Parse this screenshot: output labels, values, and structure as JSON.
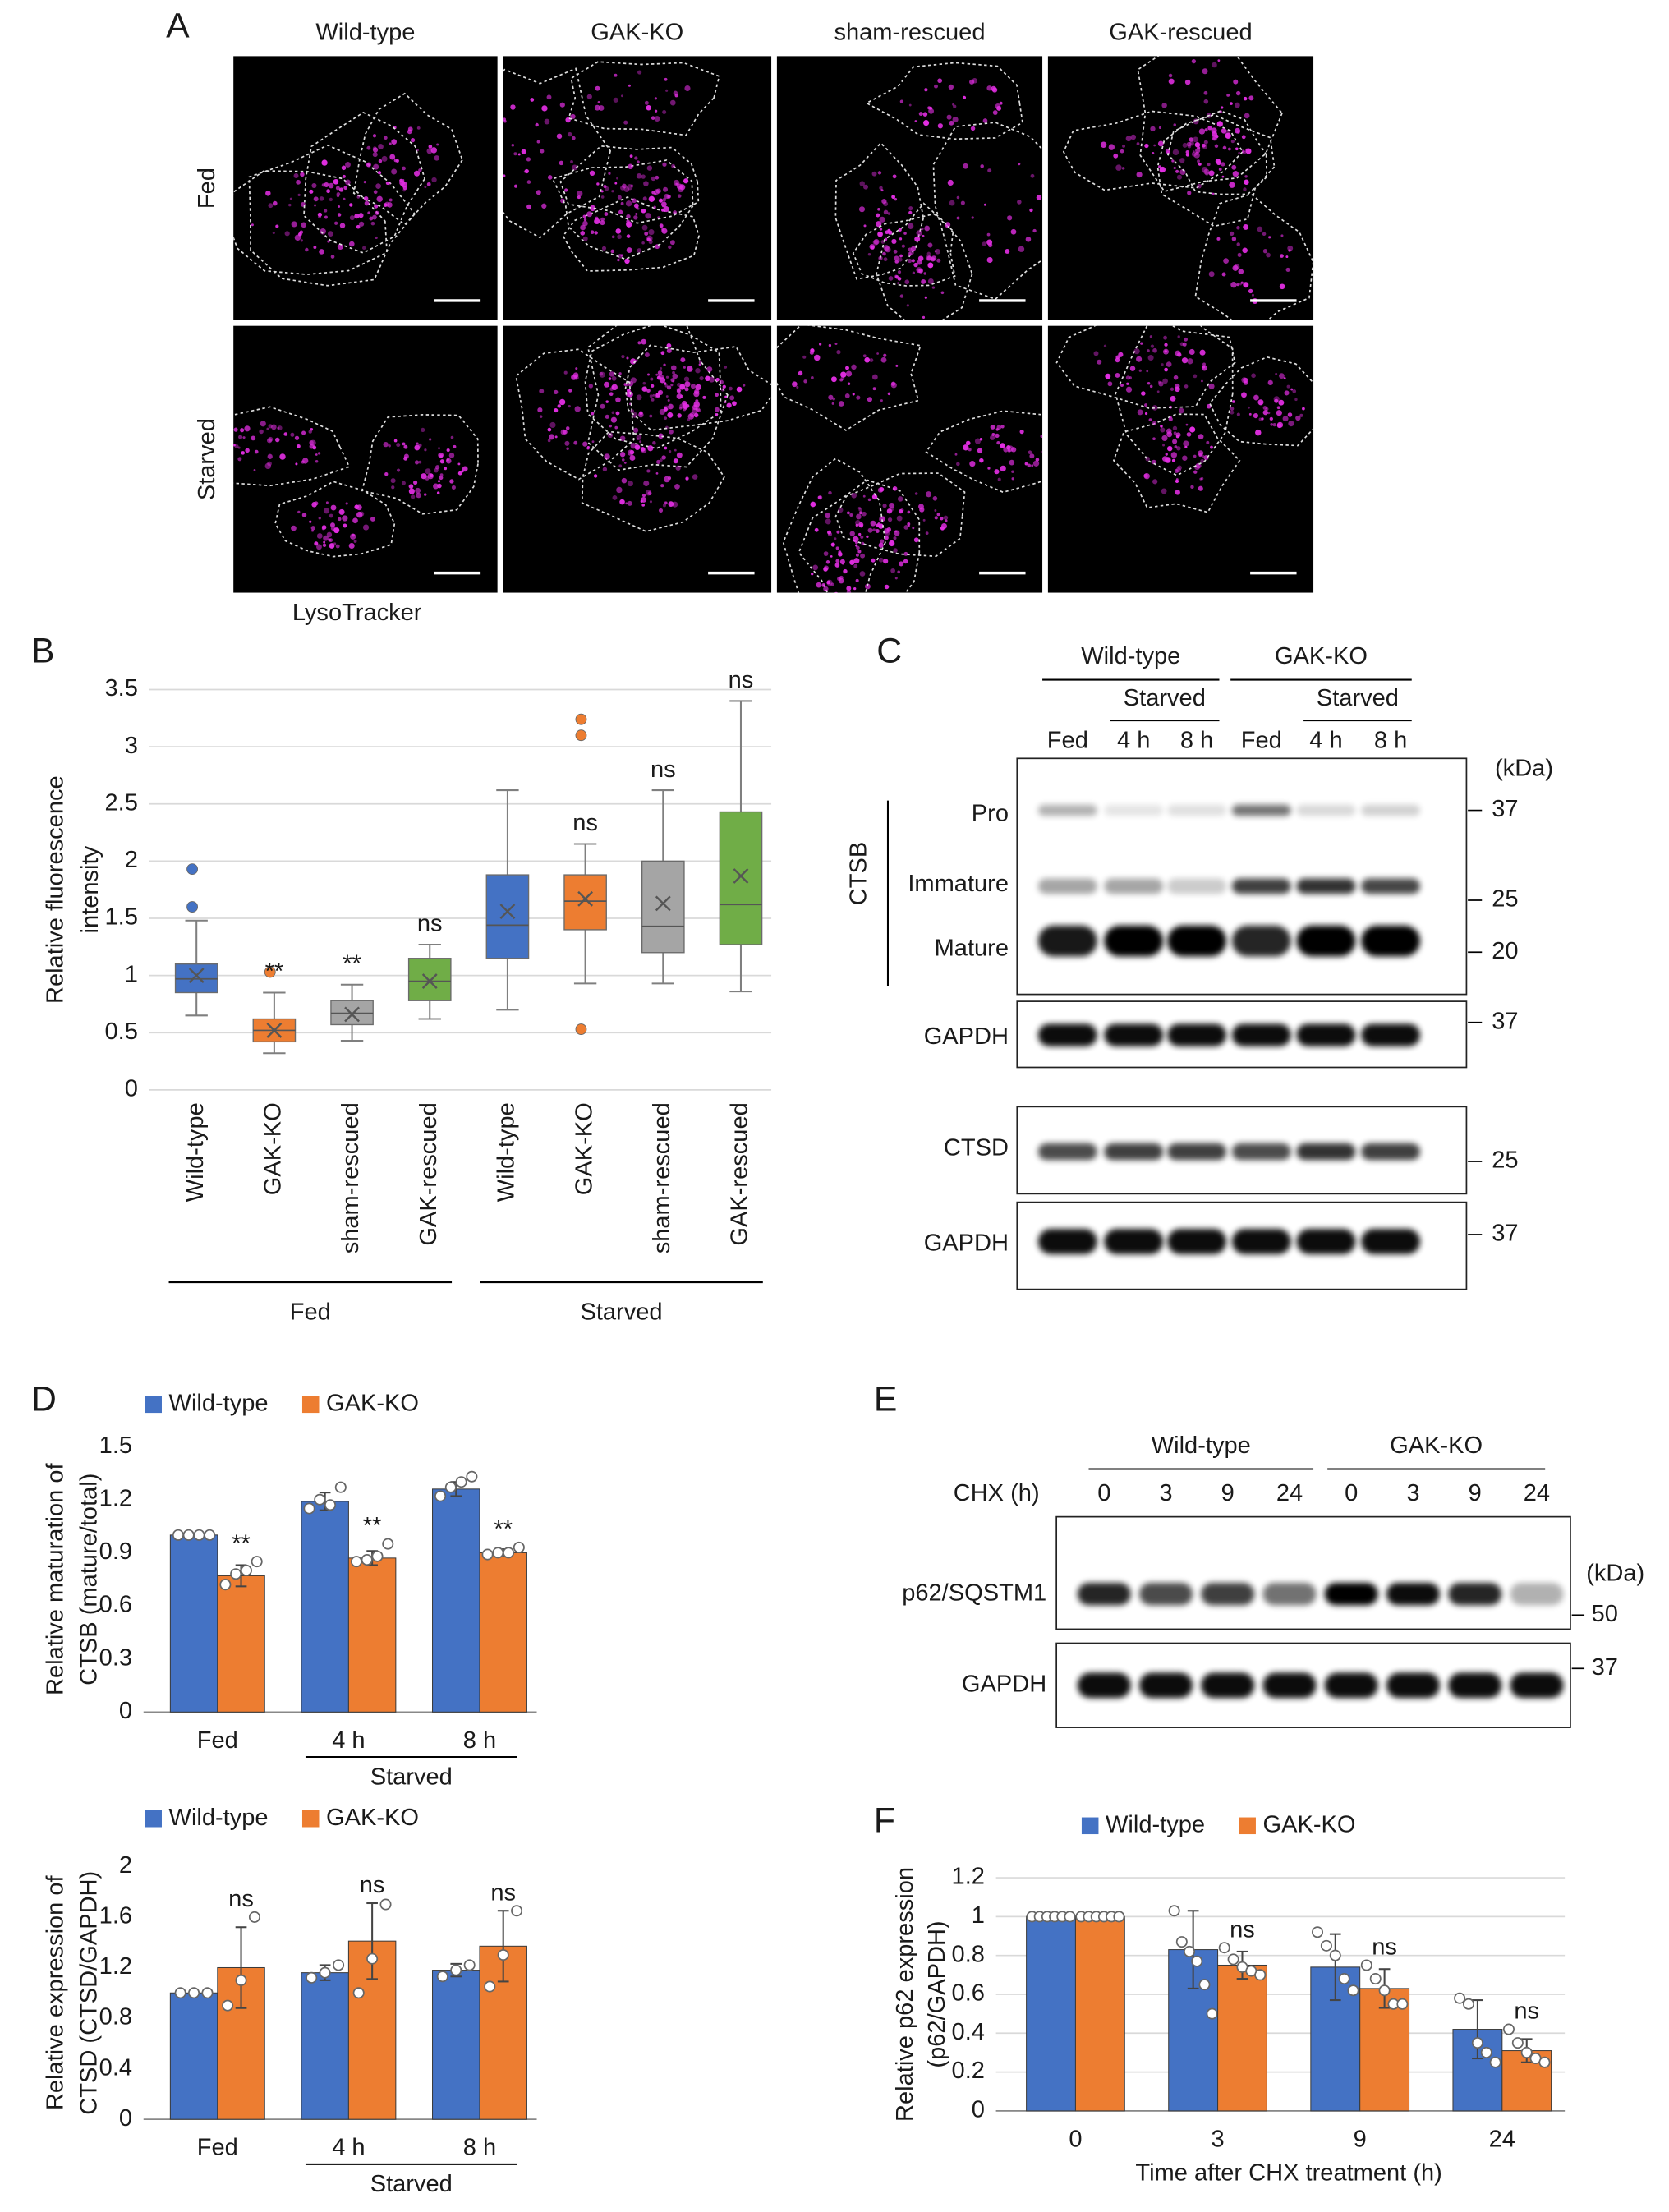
{
  "panel_labels": [
    "A",
    "B",
    "C",
    "D",
    "E",
    "F"
  ],
  "panel_a": {
    "columns": [
      "Wild-type",
      "GAK-KO",
      "sham-rescued",
      "GAK-rescued"
    ],
    "rows": [
      "Fed",
      "Starved"
    ],
    "stain": "LysoTracker"
  },
  "chart_data": [
    {
      "type": "box",
      "ylabel": [
        "Relative fluorescence",
        "intensity"
      ],
      "categories": [
        "Wild-type",
        "GAK-KO",
        "sham-rescued",
        "GAK-rescued",
        "Wild-type",
        "GAK-KO",
        "sham-rescued",
        "GAK-rescued"
      ],
      "groups": [
        "Fed",
        "Starved"
      ],
      "colors": [
        "#4472c4",
        "#ed7d31",
        "#a5a5a5",
        "#70ad47",
        "#4472c4",
        "#ed7d31",
        "#a5a5a5",
        "#70ad47"
      ],
      "whisker_low": [
        0.65,
        0.32,
        0.43,
        0.62,
        0.7,
        0.93,
        0.93,
        0.86
      ],
      "q1": [
        0.85,
        0.42,
        0.57,
        0.78,
        1.15,
        1.4,
        1.2,
        1.27
      ],
      "median": [
        0.97,
        0.52,
        0.67,
        0.95,
        1.44,
        1.65,
        1.43,
        1.62
      ],
      "q3": [
        1.1,
        0.62,
        0.78,
        1.15,
        1.88,
        1.88,
        2.0,
        2.43
      ],
      "whisker_high": [
        1.48,
        0.85,
        0.92,
        1.27,
        2.62,
        2.15,
        2.62,
        3.4
      ],
      "mean": [
        1.0,
        0.52,
        0.66,
        0.95,
        1.56,
        1.67,
        1.63,
        1.87
      ],
      "outliers": [
        [
          1.6,
          1.93
        ],
        [
          1.03
        ],
        [],
        [],
        [],
        [
          0.53,
          3.1,
          3.24
        ],
        [],
        []
      ],
      "significance": [
        null,
        "**",
        "**",
        "ns",
        null,
        "ns",
        "ns",
        "ns"
      ],
      "ylim": [
        0,
        3.5
      ],
      "yticks": [
        0,
        0.5,
        1,
        1.5,
        2,
        2.5,
        3,
        3.5
      ],
      "grid": true
    },
    {
      "type": "bar",
      "ylabel": [
        "Relative maturation of",
        "CTSB (mature/total)"
      ],
      "categories": [
        "Fed",
        "4 h",
        "8 h"
      ],
      "group": "Starved",
      "series": [
        {
          "name": "Wild-type",
          "color": "#4472c4",
          "values": [
            1.0,
            1.19,
            1.26
          ],
          "errors": [
            0,
            0.05,
            0.04
          ],
          "points": [
            [
              1.0,
              1.0,
              1.0,
              1.0
            ],
            [
              1.15,
              1.2,
              1.17,
              1.27
            ],
            [
              1.22,
              1.27,
              1.3,
              1.33
            ]
          ]
        },
        {
          "name": "GAK-KO",
          "color": "#ed7d31",
          "values": [
            0.77,
            0.87,
            0.9
          ],
          "errors": [
            0.06,
            0.04,
            0.02
          ],
          "points": [
            [
              0.72,
              0.78,
              0.8,
              0.85
            ],
            [
              0.85,
              0.86,
              0.88,
              0.95
            ],
            [
              0.89,
              0.9,
              0.9,
              0.93
            ]
          ]
        }
      ],
      "significance": [
        "**",
        "**",
        "**"
      ],
      "ylim": [
        0,
        1.5
      ],
      "yticks": [
        0,
        0.3,
        0.6,
        0.9,
        1.2,
        1.5
      ],
      "grid": false
    },
    {
      "type": "bar",
      "ylabel": [
        "Relative expression of",
        "CTSD (CTSD/GAPDH)"
      ],
      "categories": [
        "Fed",
        "4 h",
        "8 h"
      ],
      "group": "Starved",
      "series": [
        {
          "name": "Wild-type",
          "color": "#4472c4",
          "values": [
            1.0,
            1.16,
            1.18
          ],
          "errors": [
            0,
            0.06,
            0.05
          ],
          "points": [
            [
              1.0,
              1.0,
              1.0
            ],
            [
              1.12,
              1.16,
              1.22
            ],
            [
              1.13,
              1.18,
              1.22
            ]
          ]
        },
        {
          "name": "GAK-KO",
          "color": "#ed7d31",
          "values": [
            1.2,
            1.41,
            1.37
          ],
          "errors": [
            0.32,
            0.3,
            0.28
          ],
          "points": [
            [
              0.9,
              1.1,
              1.6
            ],
            [
              1.0,
              1.27,
              1.7
            ],
            [
              1.05,
              1.3,
              1.65
            ]
          ]
        }
      ],
      "significance": [
        "ns",
        "ns",
        "ns"
      ],
      "ylim": [
        0,
        2
      ],
      "yticks": [
        0,
        0.4,
        0.8,
        1.2,
        1.6,
        2
      ],
      "grid": false
    },
    {
      "type": "bar",
      "ylabel": [
        "Relative p62 expression",
        "(p62/GAPDH)"
      ],
      "xlabel": "Time after CHX treatment (h)",
      "categories": [
        "0",
        "3",
        "9",
        "24"
      ],
      "series": [
        {
          "name": "Wild-type",
          "color": "#4472c4",
          "values": [
            1.0,
            0.83,
            0.74,
            0.42
          ],
          "errors": [
            0,
            0.2,
            0.17,
            0.15
          ],
          "points": [
            [
              1.0,
              1.0,
              1.0,
              1.0,
              1.0,
              1.0
            ],
            [
              1.03,
              0.87,
              0.82,
              0.77,
              0.65,
              0.5
            ],
            [
              0.92,
              0.85,
              0.8,
              0.68,
              0.62
            ],
            [
              0.58,
              0.55,
              0.35,
              0.3,
              0.25
            ]
          ]
        },
        {
          "name": "GAK-KO",
          "color": "#ed7d31",
          "values": [
            1.0,
            0.75,
            0.63,
            0.31
          ],
          "errors": [
            0,
            0.07,
            0.1,
            0.06
          ],
          "points": [
            [
              1.0,
              1.0,
              1.0,
              1.0,
              1.0,
              1.0
            ],
            [
              0.84,
              0.78,
              0.74,
              0.72,
              0.7
            ],
            [
              0.75,
              0.68,
              0.62,
              0.55,
              0.55
            ],
            [
              0.42,
              0.35,
              0.3,
              0.27,
              0.25
            ]
          ]
        }
      ],
      "significance": [
        null,
        "ns",
        "ns",
        "ns"
      ],
      "ylim": [
        0,
        1.2
      ],
      "yticks": [
        0,
        0.2,
        0.4,
        0.6,
        0.8,
        1,
        1.2
      ],
      "grid": true
    }
  ],
  "blot_c": {
    "groups": [
      "Wild-type",
      "GAK-KO"
    ],
    "subgroup": "Starved",
    "lanes": [
      "Fed",
      "4 h",
      "8 h",
      "Fed",
      "4 h",
      "8 h"
    ],
    "bands": [
      "Pro",
      "Immature",
      "Mature"
    ],
    "bracket": "CTSB",
    "rows": [
      "GAPDH",
      "CTSD",
      "GAPDH"
    ],
    "unit": "(kDa)",
    "markers": [
      37,
      25,
      20,
      37,
      25,
      37
    ]
  },
  "blot_e": {
    "groups": [
      "Wild-type",
      "GAK-KO"
    ],
    "treatment": "CHX (h)",
    "lanes": [
      "0",
      "3",
      "9",
      "24",
      "0",
      "3",
      "9",
      "24"
    ],
    "rows": [
      "p62/SQSTM1",
      "GAPDH"
    ],
    "unit": "(kDa)",
    "markers": [
      50,
      37
    ]
  }
}
